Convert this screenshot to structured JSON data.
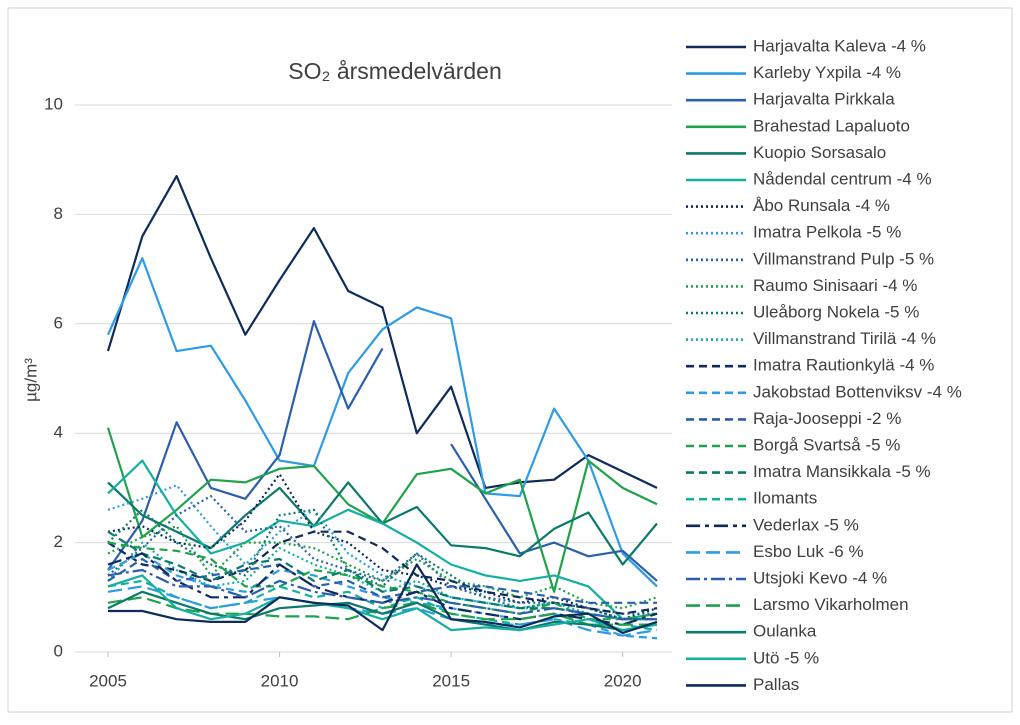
{
  "chart_data": {
    "type": "line",
    "title": "SO₂ årsmedelvärden",
    "y_label": "µg/m³",
    "x": [
      2005,
      2006,
      2007,
      2008,
      2009,
      2010,
      2011,
      2012,
      2013,
      2014,
      2015,
      2016,
      2017,
      2018,
      2019,
      2020,
      2021
    ],
    "xlim": [
      2005,
      2021
    ],
    "xticks": [
      2005,
      2010,
      2015,
      2020
    ],
    "ylim": [
      0,
      10
    ],
    "yticks": [
      0,
      2,
      4,
      6,
      8,
      10
    ],
    "grid": true,
    "legend": "right",
    "series": [
      {
        "name": "Harjavalta Kaleva -4 %",
        "color": "#0d2b5b",
        "style": "solid",
        "values": [
          5.5,
          7.6,
          8.7,
          7.2,
          5.8,
          6.8,
          7.75,
          6.6,
          6.3,
          4.0,
          4.85,
          3.0,
          3.1,
          3.15,
          3.6,
          3.3,
          3.0
        ]
      },
      {
        "name": "Karleby Yxpila -4 %",
        "color": "#2e9be6",
        "style": "solid",
        "values": [
          5.8,
          7.2,
          5.5,
          5.6,
          4.6,
          3.5,
          3.4,
          5.1,
          5.9,
          6.3,
          6.1,
          2.9,
          2.85,
          4.45,
          3.5,
          1.8,
          1.2
        ]
      },
      {
        "name": "Harjavalta Pirkkala",
        "color": "#2b5fad",
        "style": "solid",
        "values": [
          1.5,
          2.4,
          4.2,
          3.0,
          2.8,
          3.6,
          6.05,
          4.45,
          5.55,
          null,
          3.8,
          2.8,
          1.8,
          2.0,
          1.75,
          1.85,
          1.3
        ]
      },
      {
        "name": "Brahestad Lapaluoto",
        "color": "#1fa34a",
        "style": "solid",
        "values": [
          4.1,
          2.1,
          2.6,
          3.15,
          3.1,
          3.35,
          3.4,
          2.7,
          2.35,
          3.25,
          3.35,
          2.9,
          3.15,
          1.1,
          3.5,
          3.0,
          2.7
        ]
      },
      {
        "name": "Kuopio Sorsasalo",
        "color": "#0b7a6b",
        "style": "solid",
        "values": [
          3.1,
          2.5,
          2.2,
          1.9,
          2.5,
          3.0,
          2.3,
          3.1,
          2.35,
          2.65,
          1.95,
          1.9,
          1.75,
          2.25,
          2.55,
          1.6,
          2.35
        ]
      },
      {
        "name": "Nådendal centrum -4 %",
        "color": "#13b0a0",
        "style": "solid",
        "values": [
          2.9,
          3.5,
          2.5,
          1.8,
          2.0,
          2.4,
          2.3,
          2.6,
          2.35,
          2.0,
          1.6,
          1.4,
          1.3,
          1.4,
          1.2,
          0.6,
          0.7
        ]
      },
      {
        "name": "Åbo Runsala -4 %",
        "color": "#0d2b5b",
        "style": "dotted",
        "values": [
          2.2,
          2.3,
          2.0,
          1.9,
          2.4,
          3.25,
          2.2,
          2.0,
          1.5,
          1.4,
          1.2,
          1.1,
          0.9,
          1.0,
          0.8,
          0.6,
          0.8
        ]
      },
      {
        "name": "Imatra Pelkola -5 %",
        "color": "#2e9be6",
        "style": "dotted",
        "values": [
          2.6,
          2.8,
          3.05,
          2.3,
          1.6,
          2.2,
          2.6,
          1.8,
          1.4,
          1.2,
          1.0,
          0.9,
          0.8,
          0.8,
          0.7,
          0.6,
          0.6
        ]
      },
      {
        "name": "Villmanstrand Pulp -5 %",
        "color": "#2b5fad",
        "style": "dotted",
        "values": [
          1.4,
          1.9,
          2.5,
          2.85,
          2.2,
          2.3,
          1.7,
          1.5,
          1.3,
          1.8,
          1.2,
          1.0,
          0.9,
          0.9,
          0.8,
          0.7,
          0.7
        ]
      },
      {
        "name": "Raumo Sinisaari -4 %",
        "color": "#1fa34a",
        "style": "dotted",
        "values": [
          1.8,
          2.1,
          2.3,
          1.4,
          2.0,
          2.0,
          1.9,
          1.6,
          1.3,
          1.7,
          1.3,
          1.2,
          1.0,
          1.2,
          0.9,
          0.8,
          1.0
        ]
      },
      {
        "name": "Uleåborg Nokela -5 %",
        "color": "#0b7a6b",
        "style": "dotted",
        "values": [
          2.0,
          2.6,
          2.0,
          1.6,
          1.4,
          2.5,
          2.6,
          1.5,
          1.2,
          1.8,
          1.4,
          1.0,
          0.8,
          0.9,
          0.8,
          0.6,
          0.6
        ]
      },
      {
        "name": "Villmanstrand Tirilä -4 %",
        "color": "#13b0a0",
        "style": "dotted",
        "values": [
          1.3,
          2.0,
          1.5,
          1.2,
          1.3,
          1.9,
          1.6,
          1.4,
          1.1,
          1.3,
          1.0,
          0.9,
          0.8,
          0.9,
          0.7,
          0.6,
          0.6
        ]
      },
      {
        "name": "Imatra Rautionkylä -4 %",
        "color": "#0d2b5b",
        "style": "dashed",
        "values": [
          2.0,
          1.6,
          1.5,
          1.3,
          1.5,
          2.0,
          2.2,
          2.2,
          1.9,
          1.4,
          1.3,
          1.1,
          1.0,
          0.9,
          0.8,
          0.7,
          0.8
        ]
      },
      {
        "name": "Jakobstad Bottenviksv -4 %",
        "color": "#2e9be6",
        "style": "dashed",
        "values": [
          1.5,
          1.8,
          1.4,
          1.2,
          1.1,
          1.5,
          1.4,
          1.2,
          1.0,
          0.9,
          0.8,
          0.7,
          0.6,
          0.7,
          0.5,
          0.3,
          0.25
        ]
      },
      {
        "name": "Raja-Jooseppi -2 %",
        "color": "#2b5fad",
        "style": "dashed",
        "values": [
          1.3,
          1.7,
          1.3,
          1.4,
          1.5,
          1.6,
          1.2,
          1.3,
          1.0,
          1.1,
          1.2,
          1.2,
          1.1,
          1.0,
          0.9,
          0.9,
          0.9
        ]
      },
      {
        "name": "Borgå Svartså -5 %",
        "color": "#1fa34a",
        "style": "dashed",
        "values": [
          2.0,
          1.9,
          1.85,
          1.7,
          1.2,
          1.2,
          1.5,
          1.4,
          1.2,
          1.1,
          0.9,
          0.8,
          0.7,
          0.9,
          0.6,
          0.6,
          0.7
        ]
      },
      {
        "name": "Imatra Mansikkala -5 %",
        "color": "#0b7a6b",
        "style": "dashed",
        "values": [
          2.2,
          1.8,
          1.6,
          1.3,
          1.6,
          1.7,
          1.3,
          1.5,
          1.1,
          1.2,
          1.0,
          0.9,
          0.8,
          0.8,
          0.7,
          0.6,
          0.6
        ]
      },
      {
        "name": "Ilomants",
        "color": "#13b0a0",
        "style": "dashed",
        "values": [
          1.2,
          1.3,
          1.0,
          0.8,
          0.9,
          1.2,
          1.0,
          1.1,
          0.8,
          1.0,
          0.7,
          0.6,
          0.5,
          0.6,
          0.5,
          0.5,
          0.4
        ]
      },
      {
        "name": "Vederlax -5 %",
        "color": "#0d2b5b",
        "style": "dashdot",
        "values": [
          1.6,
          1.8,
          1.3,
          1.0,
          1.0,
          1.6,
          1.2,
          1.0,
          0.9,
          1.1,
          0.8,
          0.7,
          0.6,
          0.7,
          0.6,
          0.5,
          0.7
        ]
      },
      {
        "name": "Esbo Luk -6 %",
        "color": "#2e9be6",
        "style": "longdash",
        "values": [
          1.1,
          1.2,
          1.0,
          0.8,
          0.9,
          1.0,
          0.9,
          0.8,
          0.7,
          0.8,
          0.6,
          0.5,
          0.5,
          0.6,
          0.4,
          0.3,
          0.4
        ]
      },
      {
        "name": "Utsjoki Kevo -4 %",
        "color": "#2b5fad",
        "style": "longdashdot",
        "values": [
          1.4,
          1.5,
          1.2,
          1.2,
          1.0,
          1.3,
          1.1,
          1.0,
          0.9,
          1.0,
          0.9,
          0.8,
          0.7,
          0.8,
          0.7,
          0.6,
          0.6
        ]
      },
      {
        "name": "Larsmo Vikarholmen",
        "color": "#1fa34a",
        "style": "longdash",
        "values": [
          0.9,
          1.0,
          0.8,
          0.7,
          0.7,
          0.65,
          0.65,
          0.6,
          0.8,
          0.9,
          0.7,
          0.6,
          0.6,
          0.7,
          0.5,
          0.5,
          0.5
        ]
      },
      {
        "name": "Oulanka",
        "color": "#0b7a6b",
        "style": "solid",
        "values": [
          0.8,
          1.1,
          0.9,
          0.7,
          0.6,
          0.8,
          0.85,
          0.9,
          0.7,
          0.9,
          0.6,
          0.5,
          0.4,
          0.55,
          0.5,
          0.4,
          0.5
        ]
      },
      {
        "name": "Utö -5 %",
        "color": "#13b0a0",
        "style": "solid",
        "values": [
          1.2,
          1.4,
          0.8,
          0.6,
          0.7,
          1.0,
          0.9,
          0.8,
          0.6,
          0.8,
          0.4,
          0.45,
          0.4,
          0.5,
          0.6,
          0.4,
          0.5
        ]
      },
      {
        "name": "Pallas",
        "color": "#0d2b5b",
        "style": "solid",
        "values": [
          0.75,
          0.75,
          0.6,
          0.55,
          0.55,
          1.0,
          0.9,
          0.85,
          0.4,
          1.6,
          0.6,
          0.55,
          0.45,
          0.65,
          0.7,
          0.35,
          0.55
        ]
      }
    ]
  }
}
